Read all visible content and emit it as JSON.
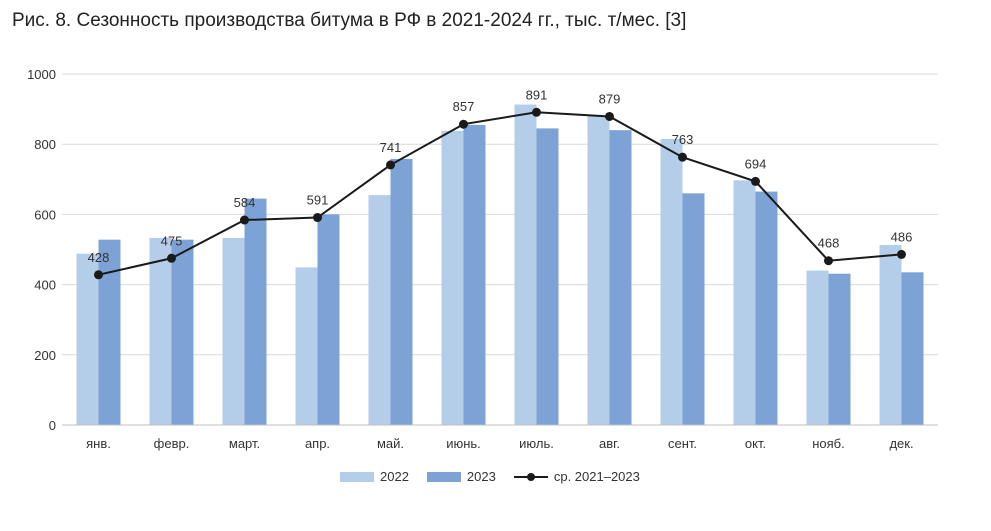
{
  "title": "Рис. 8. Сезонность производства битума в РФ в 2021-2024 гг., тыс. т/мес. [3]",
  "colors": {
    "series_2022": "#b4cde9",
    "series_2023": "#7da3d6",
    "average": "#1a1a1a",
    "grid": "#d9d9d9",
    "axis": "#bfbfbf"
  },
  "chart_data": {
    "type": "bar",
    "title": "Рис. 8. Сезонность производства битума в РФ в 2021-2024 гг., тыс. т/мес. [3]",
    "xlabel": "",
    "ylabel": "",
    "ylim": [
      0,
      1000
    ],
    "yticks": [
      0,
      200,
      400,
      600,
      800,
      1000
    ],
    "categories": [
      "янв.",
      "февр.",
      "март.",
      "апр.",
      "май.",
      "июнь.",
      "июль.",
      "авг.",
      "сент.",
      "окт.",
      "нояб.",
      "дек."
    ],
    "series": [
      {
        "name": "2022",
        "kind": "bar",
        "values": [
          488,
          533,
          533,
          449,
          655,
          838,
          913,
          880,
          815,
          697,
          440,
          513
        ]
      },
      {
        "name": "2023",
        "kind": "bar",
        "values": [
          528,
          528,
          645,
          600,
          758,
          855,
          845,
          840,
          660,
          665,
          431,
          435
        ]
      },
      {
        "name": "ср. 2021–2023",
        "kind": "line",
        "values": [
          428,
          475,
          584,
          591,
          741,
          857,
          891,
          879,
          763,
          694,
          468,
          486
        ]
      }
    ],
    "grid": true,
    "legend_position": "bottom"
  }
}
